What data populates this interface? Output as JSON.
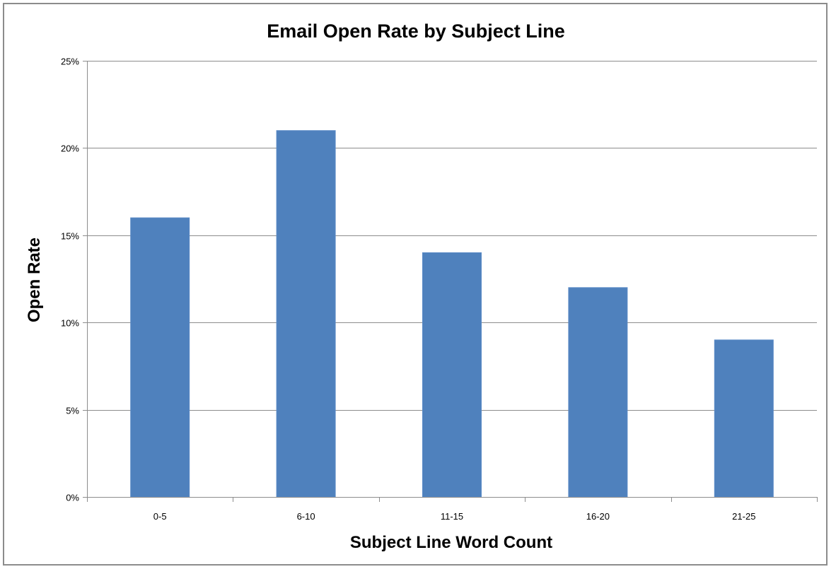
{
  "chart_data": {
    "type": "bar",
    "title": "Email Open Rate by Subject Line",
    "xlabel": "Subject Line Word Count",
    "ylabel": "Open Rate",
    "categories": [
      "0-5",
      "6-10",
      "11-15",
      "16-20",
      "21-25"
    ],
    "values": [
      16,
      21,
      14,
      12,
      9
    ],
    "ylim": [
      0,
      25
    ],
    "yticks": [
      0,
      5,
      10,
      15,
      20,
      25
    ],
    "ytick_labels": [
      "0%",
      "5%",
      "10%",
      "15%",
      "20%",
      "25%"
    ],
    "y_format": "percent",
    "grid": true,
    "legend": "none",
    "bar_color": "#4f81bd"
  }
}
